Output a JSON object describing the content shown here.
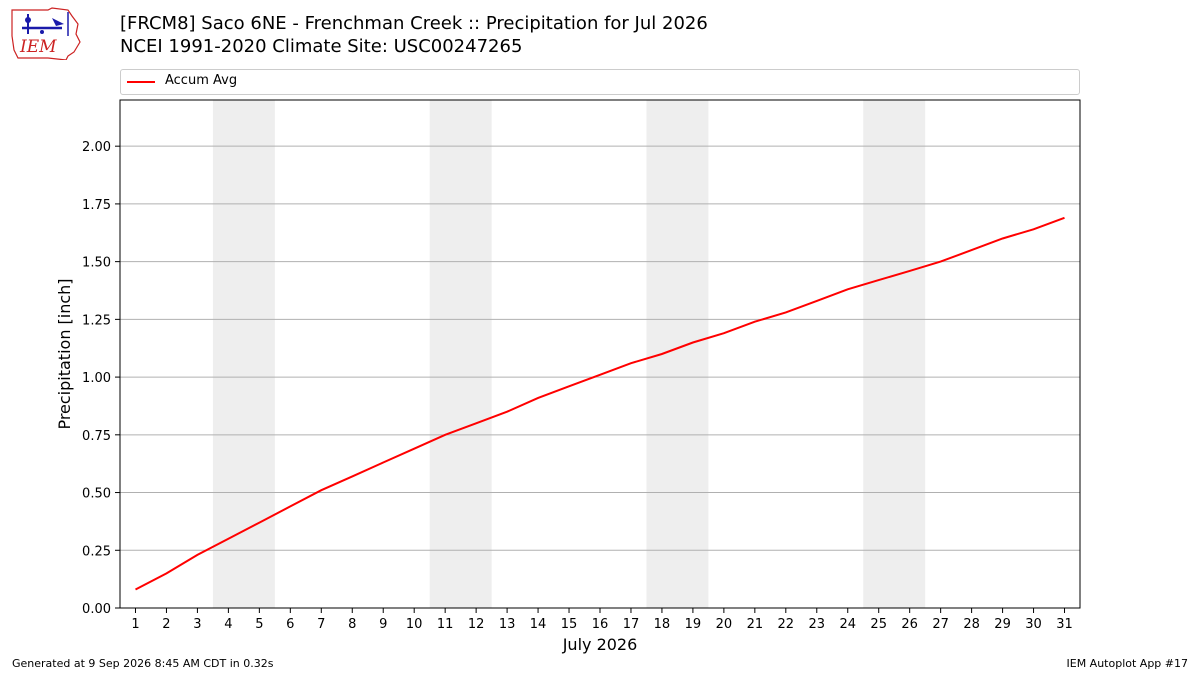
{
  "title": {
    "line1": "[FRCM8] Saco 6NE - Frenchman Creek :: Precipitation for Jul 2026",
    "line2": "NCEI 1991-2020 Climate Site: USC00247265"
  },
  "logo_text": "IEM",
  "footer": {
    "left": "Generated at 9 Sep 2026 8:45 AM CDT in 0.32s",
    "right": "IEM Autoplot App #17"
  },
  "colors": {
    "series": "#ff0000",
    "weekend_band": "#eeeeee",
    "grid": "#b0b0b0",
    "logo_red": "#cc2222",
    "logo_blue": "#1a1aaa"
  },
  "chart_data": {
    "type": "line",
    "xlabel": "July 2026",
    "ylabel": "Precipitation [inch]",
    "xlim": [
      0.5,
      31.5
    ],
    "ylim": [
      0,
      2.2
    ],
    "x_ticks": [
      1,
      2,
      3,
      4,
      5,
      6,
      7,
      8,
      9,
      10,
      11,
      12,
      13,
      14,
      15,
      16,
      17,
      18,
      19,
      20,
      21,
      22,
      23,
      24,
      25,
      26,
      27,
      28,
      29,
      30,
      31
    ],
    "y_ticks": [
      0.0,
      0.25,
      0.5,
      0.75,
      1.0,
      1.25,
      1.5,
      1.75,
      2.0
    ],
    "y_tick_labels": [
      "0.00",
      "0.25",
      "0.50",
      "0.75",
      "1.00",
      "1.25",
      "1.50",
      "1.75",
      "2.00"
    ],
    "grid": "horizontal",
    "legend_position": "top",
    "weekend_bands": [
      [
        3.5,
        5.5
      ],
      [
        10.5,
        12.5
      ],
      [
        17.5,
        19.5
      ],
      [
        24.5,
        26.5
      ]
    ],
    "series": [
      {
        "name": "Accum Avg",
        "x": [
          1,
          2,
          3,
          4,
          5,
          6,
          7,
          8,
          9,
          10,
          11,
          12,
          13,
          14,
          15,
          16,
          17,
          18,
          19,
          20,
          21,
          22,
          23,
          24,
          25,
          26,
          27,
          28,
          29,
          30,
          31
        ],
        "values": [
          0.08,
          0.15,
          0.23,
          0.3,
          0.37,
          0.44,
          0.51,
          0.57,
          0.63,
          0.69,
          0.75,
          0.8,
          0.85,
          0.91,
          0.96,
          1.01,
          1.06,
          1.1,
          1.15,
          1.19,
          1.24,
          1.28,
          1.33,
          1.38,
          1.42,
          1.46,
          1.5,
          1.55,
          1.6,
          1.64,
          1.69
        ]
      }
    ]
  }
}
